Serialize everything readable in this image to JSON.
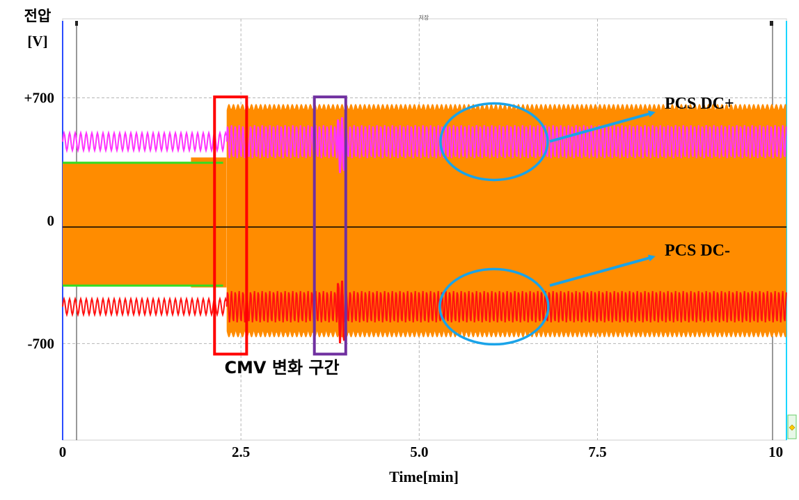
{
  "chart_data": {
    "type": "line",
    "title": "저장",
    "ylabel_line1": "전압",
    "ylabel_line2": "[V]",
    "xlabel": "Time[min]",
    "xlim": [
      0,
      10.15
    ],
    "ylim": [
      -1250,
      1150
    ],
    "x_ticks": [
      {
        "value": 0,
        "label": "0"
      },
      {
        "value": 2.5,
        "label": "2.5"
      },
      {
        "value": 5.0,
        "label": "5.0"
      },
      {
        "value": 7.5,
        "label": "7.5"
      },
      {
        "value": 10,
        "label": "10"
      }
    ],
    "y_ticks": [
      {
        "value": 700,
        "label": "+700"
      },
      {
        "value": 0,
        "label": "0"
      },
      {
        "value": -700,
        "label": "-700"
      }
    ],
    "grid": true,
    "series": [
      {
        "color": "#ff8c00",
        "segments": [
          {
            "x": [
              0.0,
              2.25
            ],
            "upper": 335,
            "lower": -370
          },
          {
            "x": [
              1.8,
              2.3
            ],
            "upper": 360,
            "lower": -380
          },
          {
            "x": [
              2.3,
              10.15
            ],
            "upper": 665,
            "lower": -665
          }
        ]
      },
      {
        "name": "PCS DC+",
        "color": "#ff33ff",
        "segments": [
          {
            "x": [
              0.0,
              2.3
            ],
            "center": 450,
            "amplitude": 50
          },
          {
            "x": [
              2.3,
              10.15
            ],
            "center": 450,
            "amplitude": 95
          },
          {
            "x": [
              3.85,
              3.95
            ],
            "center": 430,
            "amplitude": 160
          }
        ]
      },
      {
        "name": "PCS DC-",
        "color": "#ff1010",
        "segments": [
          {
            "x": [
              0.0,
              2.3
            ],
            "center": -490,
            "amplitude": 45
          },
          {
            "x": [
              2.3,
              10.15
            ],
            "center": -490,
            "amplitude": 90
          },
          {
            "x": [
              3.85,
              3.95
            ],
            "center": -520,
            "amplitude": 180
          }
        ]
      },
      {
        "color": "#33dd22",
        "segments": [
          {
            "x": [
              0.0,
              2.25
            ],
            "upper": 330,
            "lower": -370
          }
        ]
      }
    ],
    "annotations": {
      "pcs_dc_plus": "PCS DC+",
      "pcs_dc_minus": "PCS DC-",
      "cmv_region": "CMV 변화 구간",
      "regions": [
        {
          "name": "red-box",
          "x": [
            2.13,
            2.58
          ],
          "y": [
            -760,
            705
          ],
          "color": "#ff0000"
        },
        {
          "name": "purple-box",
          "x": [
            3.53,
            3.97
          ],
          "y": [
            -760,
            705
          ],
          "color": "#7030a0"
        }
      ],
      "ellipse_color": "#1aa3e8"
    }
  }
}
